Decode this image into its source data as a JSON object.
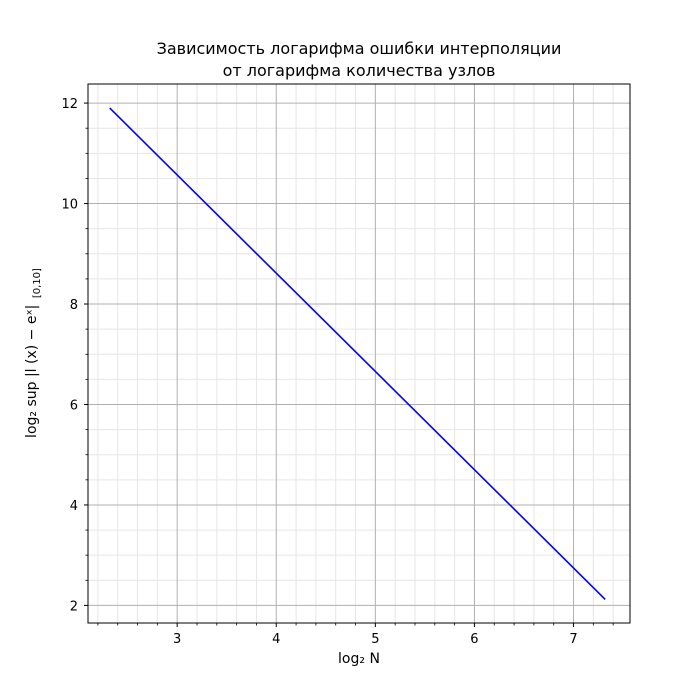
{
  "chart_data": {
    "type": "line",
    "title_line1": "Зависимость логарифма ошибки интерполяции",
    "title_line2": "от логарифма количества узлов",
    "xlabel": "log₂ N",
    "ylabel": "log₂ sup |l (x) − eˣ|",
    "ylabel_sub": "[0,10]",
    "xlim": [
      2.1,
      7.57
    ],
    "ylim": [
      1.65,
      12.38
    ],
    "xticks": [
      3,
      4,
      5,
      6,
      7
    ],
    "yticks": [
      2,
      4,
      6,
      8,
      10,
      12
    ],
    "x_minor_step": 0.2,
    "y_minor_step": 0.5,
    "grid": true,
    "series": [
      {
        "color": "#0000ff",
        "x": [
          2.32,
          7.32
        ],
        "y": [
          11.9,
          2.12
        ]
      }
    ]
  }
}
